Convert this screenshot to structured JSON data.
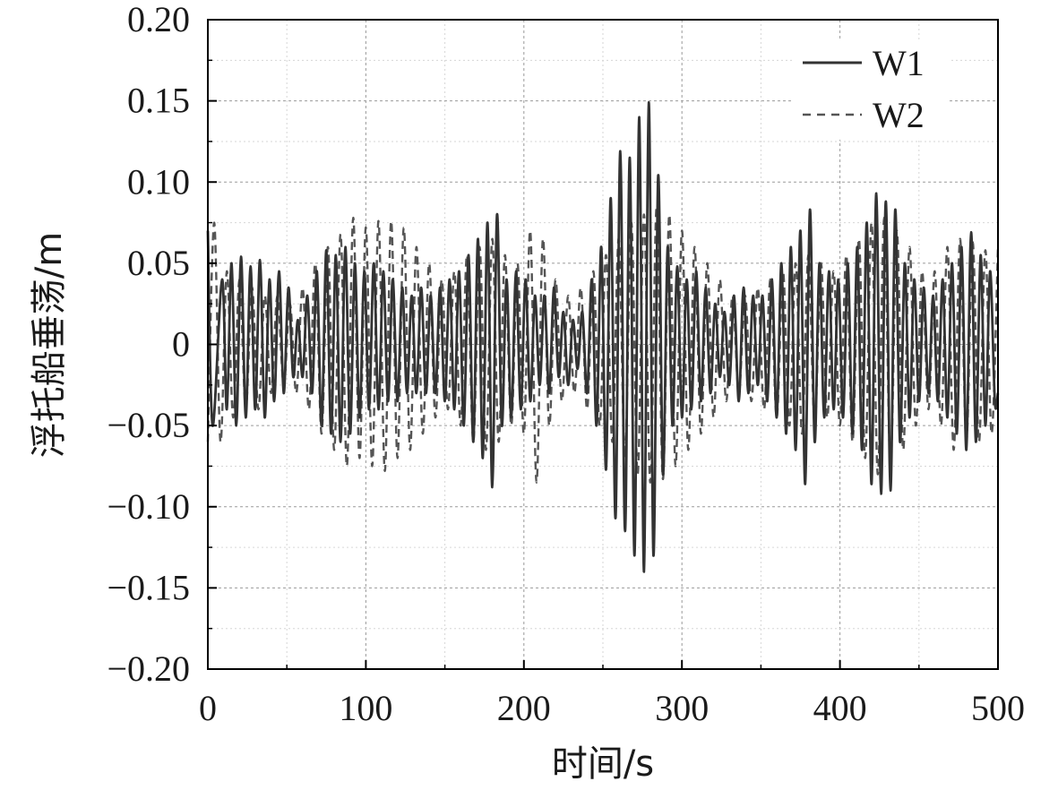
{
  "chart_data": {
    "type": "line",
    "title": "",
    "xlabel": "时间/s",
    "ylabel": "浮托船垂荡/m",
    "xlim": [
      0,
      500
    ],
    "ylim": [
      -0.2,
      0.2
    ],
    "x_ticks": [
      0,
      100,
      200,
      300,
      400,
      500
    ],
    "x_tick_labels": [
      "0",
      "100",
      "200",
      "300",
      "400",
      "500"
    ],
    "y_ticks": [
      -0.2,
      -0.15,
      -0.1,
      -0.05,
      0,
      0.05,
      0.1,
      0.15,
      0.2
    ],
    "y_tick_labels": [
      "−0.20",
      "−0.15",
      "−0.10",
      "−0.05",
      "0",
      "0.05",
      "0.10",
      "0.15",
      "0.20"
    ],
    "grid": true,
    "legend_position": "top-right",
    "series": [
      {
        "name": "W1",
        "line_style": "solid",
        "color": "#333333",
        "x": [
          0,
          3,
          9,
          12,
          15,
          18,
          21,
          24,
          27,
          30,
          33,
          36,
          39,
          42,
          45,
          48,
          51,
          54,
          57,
          60,
          63,
          66,
          69,
          72,
          75,
          78,
          81,
          84,
          87,
          90,
          93,
          96,
          99,
          102,
          105,
          108,
          111,
          114,
          117,
          120,
          123,
          126,
          129,
          132,
          135,
          138,
          141,
          144,
          147,
          150,
          153,
          156,
          159,
          162,
          165,
          168,
          171,
          174,
          177,
          180,
          183,
          186,
          189,
          192,
          195,
          198,
          201,
          204,
          207,
          210,
          213,
          216,
          219,
          222,
          225,
          228,
          231,
          234,
          237,
          240,
          243,
          246,
          249,
          252,
          255,
          258,
          261,
          264,
          267,
          270,
          273,
          276,
          279,
          282,
          285,
          288,
          291,
          294,
          297,
          300,
          303,
          306,
          309,
          312,
          315,
          318,
          321,
          324,
          327,
          330,
          333,
          336,
          339,
          342,
          345,
          348,
          351,
          354,
          357,
          360,
          363,
          366,
          369,
          372,
          375,
          378,
          381,
          384,
          387,
          390,
          393,
          396,
          399,
          402,
          405,
          408,
          411,
          414,
          417,
          420,
          423,
          426,
          429,
          432,
          435,
          438,
          441,
          444,
          447,
          450,
          453,
          456,
          459,
          462,
          465,
          468,
          471,
          474,
          477,
          480,
          483,
          486,
          489,
          492,
          495,
          498,
          500
        ],
        "y": [
          0.07,
          -0.05,
          0.04,
          -0.04,
          0.05,
          -0.05,
          0.054,
          -0.045,
          0.048,
          -0.04,
          0.052,
          -0.045,
          0.04,
          -0.035,
          0.045,
          -0.03,
          0.035,
          -0.02,
          0.015,
          -0.02,
          0.03,
          -0.03,
          0.045,
          -0.05,
          0.058,
          -0.055,
          0.055,
          -0.06,
          0.06,
          -0.055,
          0.05,
          -0.045,
          0.045,
          -0.04,
          0.05,
          -0.04,
          0.045,
          -0.035,
          0.04,
          -0.035,
          0.035,
          -0.03,
          0.03,
          -0.03,
          0.035,
          -0.03,
          0.03,
          -0.03,
          0.035,
          -0.035,
          0.04,
          -0.04,
          0.045,
          -0.05,
          0.055,
          -0.06,
          0.065,
          -0.07,
          0.075,
          -0.088,
          0.08,
          -0.05,
          0.04,
          -0.045,
          0.045,
          -0.04,
          0.04,
          -0.035,
          0.03,
          -0.025,
          0.03,
          -0.03,
          0.035,
          -0.02,
          0.02,
          -0.025,
          0.015,
          -0.015,
          0.02,
          -0.03,
          0.04,
          -0.05,
          0.06,
          -0.077,
          0.09,
          -0.107,
          0.119,
          -0.115,
          0.115,
          -0.13,
          0.14,
          -0.14,
          0.149,
          -0.13,
          0.104,
          -0.08,
          0.06,
          -0.05,
          0.048,
          -0.045,
          0.04,
          -0.04,
          0.045,
          -0.035,
          0.035,
          -0.03,
          0.025,
          -0.02,
          0.02,
          -0.025,
          0.03,
          -0.035,
          0.035,
          -0.03,
          0.03,
          -0.025,
          0.03,
          -0.035,
          0.04,
          -0.045,
          0.05,
          -0.055,
          0.06,
          -0.065,
          0.07,
          -0.086,
          0.083,
          -0.06,
          0.05,
          -0.045,
          0.045,
          -0.04,
          0.04,
          -0.045,
          0.05,
          -0.055,
          0.06,
          -0.065,
          0.075,
          -0.086,
          0.093,
          -0.092,
          0.088,
          -0.09,
          0.083,
          -0.06,
          0.05,
          -0.045,
          0.04,
          -0.035,
          0.035,
          -0.03,
          0.03,
          -0.035,
          0.04,
          -0.045,
          0.05,
          -0.055,
          0.06,
          -0.065,
          0.069,
          -0.06,
          0.055,
          -0.05,
          0.045,
          -0.035,
          -0.03
        ]
      },
      {
        "name": "W2",
        "line_style": "dashed",
        "color": "#555555",
        "x": [
          0,
          4,
          8,
          12,
          16,
          20,
          24,
          28,
          32,
          36,
          40,
          44,
          48,
          52,
          56,
          60,
          64,
          68,
          72,
          76,
          80,
          84,
          88,
          92,
          96,
          100,
          104,
          108,
          112,
          116,
          120,
          124,
          128,
          132,
          136,
          140,
          144,
          148,
          152,
          156,
          160,
          164,
          168,
          172,
          176,
          180,
          184,
          188,
          192,
          196,
          200,
          204,
          208,
          212,
          216,
          220,
          224,
          228,
          232,
          236,
          240,
          244,
          248,
          252,
          256,
          260,
          264,
          268,
          272,
          276,
          280,
          284,
          288,
          292,
          296,
          300,
          304,
          308,
          312,
          316,
          320,
          324,
          328,
          332,
          336,
          340,
          344,
          348,
          352,
          356,
          360,
          364,
          368,
          372,
          376,
          380,
          384,
          388,
          392,
          396,
          400,
          404,
          408,
          412,
          416,
          420,
          424,
          428,
          432,
          436,
          440,
          444,
          448,
          452,
          456,
          460,
          464,
          468,
          472,
          476,
          480,
          484,
          488,
          492,
          496,
          500
        ],
        "y": [
          -0.06,
          0.075,
          -0.06,
          0.045,
          -0.045,
          0.04,
          -0.04,
          0.035,
          -0.04,
          0.03,
          -0.03,
          0.03,
          -0.025,
          0.025,
          -0.03,
          0.035,
          -0.04,
          0.05,
          -0.055,
          0.06,
          -0.065,
          0.068,
          -0.075,
          0.078,
          -0.07,
          0.072,
          -0.075,
          0.076,
          -0.078,
          0.076,
          -0.07,
          0.072,
          -0.065,
          0.06,
          -0.055,
          0.05,
          -0.045,
          0.04,
          -0.04,
          0.045,
          -0.05,
          0.055,
          -0.06,
          0.06,
          -0.065,
          0.065,
          -0.06,
          0.055,
          -0.05,
          0.05,
          -0.055,
          0.07,
          -0.085,
          0.065,
          -0.05,
          0.04,
          -0.035,
          0.03,
          -0.03,
          0.035,
          -0.04,
          0.045,
          -0.05,
          0.055,
          -0.06,
          0.065,
          -0.07,
          0.075,
          -0.08,
          0.08,
          -0.085,
          0.085,
          -0.083,
          0.08,
          -0.075,
          0.07,
          -0.065,
          0.06,
          -0.055,
          0.05,
          -0.045,
          0.04,
          -0.035,
          0.03,
          -0.03,
          0.03,
          -0.035,
          0.035,
          -0.04,
          0.04,
          -0.045,
          0.045,
          -0.05,
          0.05,
          -0.055,
          0.055,
          -0.05,
          0.05,
          -0.045,
          0.045,
          -0.05,
          0.055,
          -0.06,
          0.065,
          -0.07,
          0.075,
          -0.08,
          0.078,
          -0.075,
          0.07,
          -0.065,
          0.06,
          -0.05,
          0.045,
          -0.04,
          0.045,
          -0.05,
          0.06,
          -0.065,
          0.065,
          -0.06,
          0.063,
          -0.06,
          0.058,
          -0.055,
          0.06
        ]
      }
    ]
  }
}
